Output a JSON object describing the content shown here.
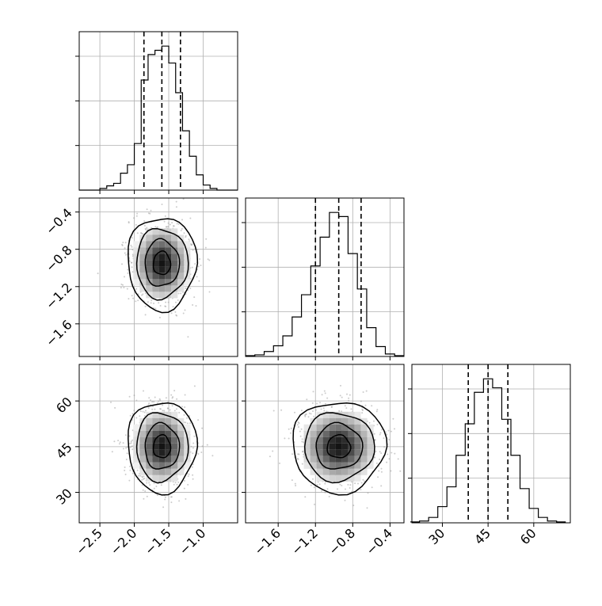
{
  "chart_data": {
    "type": "corner",
    "title": "",
    "parameters": [
      {
        "index": 0,
        "range": [
          -2.8,
          -0.5
        ],
        "ticks": [
          -2.5,
          -2.0,
          -1.5,
          -1.0
        ],
        "tick_labels": [
          "−2.5",
          "−2.0",
          "−1.5",
          "−1.0"
        ],
        "quantiles": [
          -1.86,
          -1.6,
          -1.33
        ],
        "mean": -1.6,
        "sd": 0.2
      },
      {
        "index": 1,
        "range": [
          -1.95,
          -0.25
        ],
        "ticks": [
          -1.6,
          -1.2,
          -0.8,
          -0.4
        ],
        "tick_labels": [
          "−1.6",
          "−1.2",
          "−0.8",
          "−0.4"
        ],
        "quantiles": [
          -1.2,
          -0.95,
          -0.71
        ],
        "mean": -0.95,
        "sd": 0.2
      },
      {
        "index": 2,
        "range": [
          20,
          72
        ],
        "ticks": [
          30,
          45,
          60
        ],
        "tick_labels": [
          "30",
          "45",
          "60"
        ],
        "quantiles": [
          38.5,
          45,
          51.5
        ],
        "mean": 45,
        "sd": 6
      }
    ],
    "histograms": [
      {
        "param": 0,
        "x": [
          -2.75,
          -2.65,
          -2.55,
          -2.45,
          -2.35,
          -2.25,
          -2.15,
          -2.05,
          -1.95,
          -1.85,
          -1.75,
          -1.65,
          -1.55,
          -1.45,
          -1.35,
          -1.25,
          -1.15,
          -1.05,
          -0.95,
          -0.85,
          -0.75,
          -0.65,
          -0.55
        ],
        "counts": [
          0,
          0,
          0,
          2,
          5,
          8,
          20,
          30,
          55,
          130,
          160,
          165,
          170,
          150,
          115,
          70,
          40,
          18,
          6,
          2,
          0,
          0,
          0
        ]
      },
      {
        "param": 1,
        "x": [
          -1.9,
          -1.8,
          -1.7,
          -1.6,
          -1.5,
          -1.4,
          -1.3,
          -1.2,
          -1.1,
          -1.0,
          -0.9,
          -0.8,
          -0.7,
          -0.6,
          -0.5,
          -0.4,
          -0.3
        ],
        "counts": [
          1,
          2,
          6,
          13,
          25,
          48,
          75,
          110,
          145,
          175,
          170,
          125,
          82,
          35,
          12,
          3,
          1
        ]
      },
      {
        "param": 2,
        "x": [
          21,
          24,
          27,
          30,
          33,
          36,
          39,
          42,
          45,
          48,
          51,
          54,
          57,
          60,
          63,
          66,
          69
        ],
        "counts": [
          1,
          2,
          6,
          18,
          40,
          75,
          110,
          145,
          160,
          150,
          115,
          75,
          38,
          16,
          6,
          2,
          1
        ]
      }
    ],
    "panels_2d": [
      {
        "x": 0,
        "y": 1,
        "peak": [
          -1.6,
          -0.95
        ],
        "contour_levels": [
          "0.5σ",
          "1σ",
          "1.5σ",
          "2σ"
        ]
      },
      {
        "x": 0,
        "y": 2,
        "peak": [
          -1.6,
          45
        ],
        "contour_levels": [
          "0.5σ",
          "1σ",
          "1.5σ",
          "2σ"
        ]
      },
      {
        "x": 1,
        "y": 2,
        "peak": [
          -0.95,
          45
        ],
        "contour_levels": [
          "0.5σ",
          "1σ",
          "1.5σ",
          "2σ"
        ]
      }
    ],
    "grid": true,
    "histogram_y_ticks": 3
  }
}
